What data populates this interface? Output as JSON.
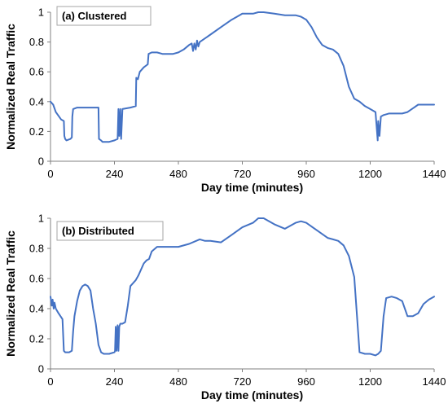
{
  "chart_data": [
    {
      "type": "line",
      "panel_label": "(a) Clustered",
      "xlabel": "Day time (minutes)",
      "ylabel": "Normalized Real Traffic",
      "xlim": [
        0,
        1440
      ],
      "ylim": [
        0,
        1
      ],
      "xticks": [
        0,
        240,
        480,
        720,
        960,
        1200,
        1440
      ],
      "yticks": [
        0,
        0.2,
        0.4,
        0.6,
        0.8,
        1
      ],
      "ytick_labels": [
        "0",
        "0.2",
        "0.4",
        "0.6",
        "0.8",
        "1"
      ],
      "grid": false,
      "color": "#4472c4",
      "x": [
        0,
        10,
        20,
        40,
        50,
        52,
        55,
        60,
        75,
        80,
        82,
        85,
        100,
        130,
        180,
        182,
        190,
        195,
        220,
        240,
        252,
        255,
        258,
        262,
        265,
        270,
        300,
        320,
        322,
        328,
        335,
        340,
        350,
        365,
        368,
        380,
        400,
        420,
        440,
        460,
        480,
        500,
        520,
        530,
        535,
        540,
        545,
        550,
        555,
        560,
        600,
        640,
        680,
        700,
        720,
        760,
        780,
        800,
        840,
        880,
        920,
        940,
        960,
        980,
        1000,
        1020,
        1040,
        1060,
        1080,
        1100,
        1120,
        1140,
        1160,
        1180,
        1200,
        1220,
        1228,
        1230,
        1235,
        1240,
        1250,
        1270,
        1300,
        1320,
        1340,
        1380,
        1400,
        1440
      ],
      "values": [
        0.4,
        0.38,
        0.33,
        0.28,
        0.27,
        0.17,
        0.15,
        0.14,
        0.15,
        0.16,
        0.3,
        0.35,
        0.36,
        0.36,
        0.36,
        0.15,
        0.14,
        0.13,
        0.13,
        0.14,
        0.15,
        0.35,
        0.17,
        0.35,
        0.15,
        0.35,
        0.36,
        0.37,
        0.56,
        0.55,
        0.6,
        0.61,
        0.63,
        0.65,
        0.72,
        0.73,
        0.73,
        0.72,
        0.72,
        0.72,
        0.73,
        0.75,
        0.78,
        0.79,
        0.74,
        0.79,
        0.75,
        0.81,
        0.77,
        0.8,
        0.85,
        0.9,
        0.95,
        0.97,
        0.99,
        0.99,
        1.0,
        1.0,
        0.99,
        0.98,
        0.98,
        0.97,
        0.95,
        0.9,
        0.83,
        0.78,
        0.76,
        0.75,
        0.72,
        0.64,
        0.5,
        0.42,
        0.4,
        0.37,
        0.35,
        0.33,
        0.14,
        0.27,
        0.17,
        0.3,
        0.31,
        0.32,
        0.32,
        0.32,
        0.33,
        0.38,
        0.38,
        0.38
      ]
    },
    {
      "type": "line",
      "panel_label": "(b) Distributed",
      "xlabel": "Day time (minutes)",
      "ylabel": "Normalized Real Traffic",
      "xlim": [
        0,
        1440
      ],
      "ylim": [
        0,
        1
      ],
      "xticks": [
        0,
        240,
        480,
        720,
        960,
        1200,
        1440
      ],
      "yticks": [
        0,
        0.2,
        0.4,
        0.6,
        0.8,
        1
      ],
      "ytick_labels": [
        "0",
        "0.2",
        "0.4",
        "0.6",
        "0.8",
        "1"
      ],
      "grid": false,
      "color": "#4472c4",
      "x": [
        0,
        5,
        8,
        12,
        15,
        20,
        30,
        45,
        50,
        55,
        60,
        70,
        80,
        85,
        90,
        100,
        110,
        120,
        130,
        140,
        150,
        160,
        170,
        180,
        190,
        200,
        220,
        240,
        242,
        245,
        248,
        252,
        255,
        258,
        262,
        270,
        280,
        290,
        300,
        320,
        330,
        340,
        350,
        360,
        370,
        380,
        400,
        440,
        480,
        520,
        560,
        580,
        600,
        640,
        680,
        720,
        760,
        780,
        800,
        840,
        880,
        920,
        940,
        960,
        1000,
        1040,
        1060,
        1080,
        1100,
        1120,
        1140,
        1160,
        1180,
        1200,
        1220,
        1230,
        1240,
        1250,
        1260,
        1280,
        1300,
        1320,
        1340,
        1360,
        1380,
        1400,
        1420,
        1440
      ],
      "values": [
        0.48,
        0.42,
        0.46,
        0.4,
        0.44,
        0.4,
        0.37,
        0.33,
        0.12,
        0.11,
        0.11,
        0.11,
        0.12,
        0.25,
        0.35,
        0.45,
        0.52,
        0.55,
        0.56,
        0.55,
        0.52,
        0.4,
        0.3,
        0.16,
        0.11,
        0.1,
        0.1,
        0.11,
        0.12,
        0.28,
        0.12,
        0.29,
        0.12,
        0.28,
        0.3,
        0.3,
        0.31,
        0.42,
        0.55,
        0.59,
        0.62,
        0.66,
        0.7,
        0.72,
        0.73,
        0.78,
        0.81,
        0.81,
        0.81,
        0.83,
        0.86,
        0.85,
        0.85,
        0.84,
        0.89,
        0.94,
        0.97,
        1.0,
        1.0,
        0.96,
        0.93,
        0.97,
        0.98,
        0.97,
        0.92,
        0.87,
        0.86,
        0.85,
        0.82,
        0.75,
        0.61,
        0.11,
        0.1,
        0.1,
        0.09,
        0.1,
        0.12,
        0.35,
        0.47,
        0.48,
        0.47,
        0.45,
        0.35,
        0.35,
        0.37,
        0.43,
        0.46,
        0.48
      ]
    }
  ]
}
